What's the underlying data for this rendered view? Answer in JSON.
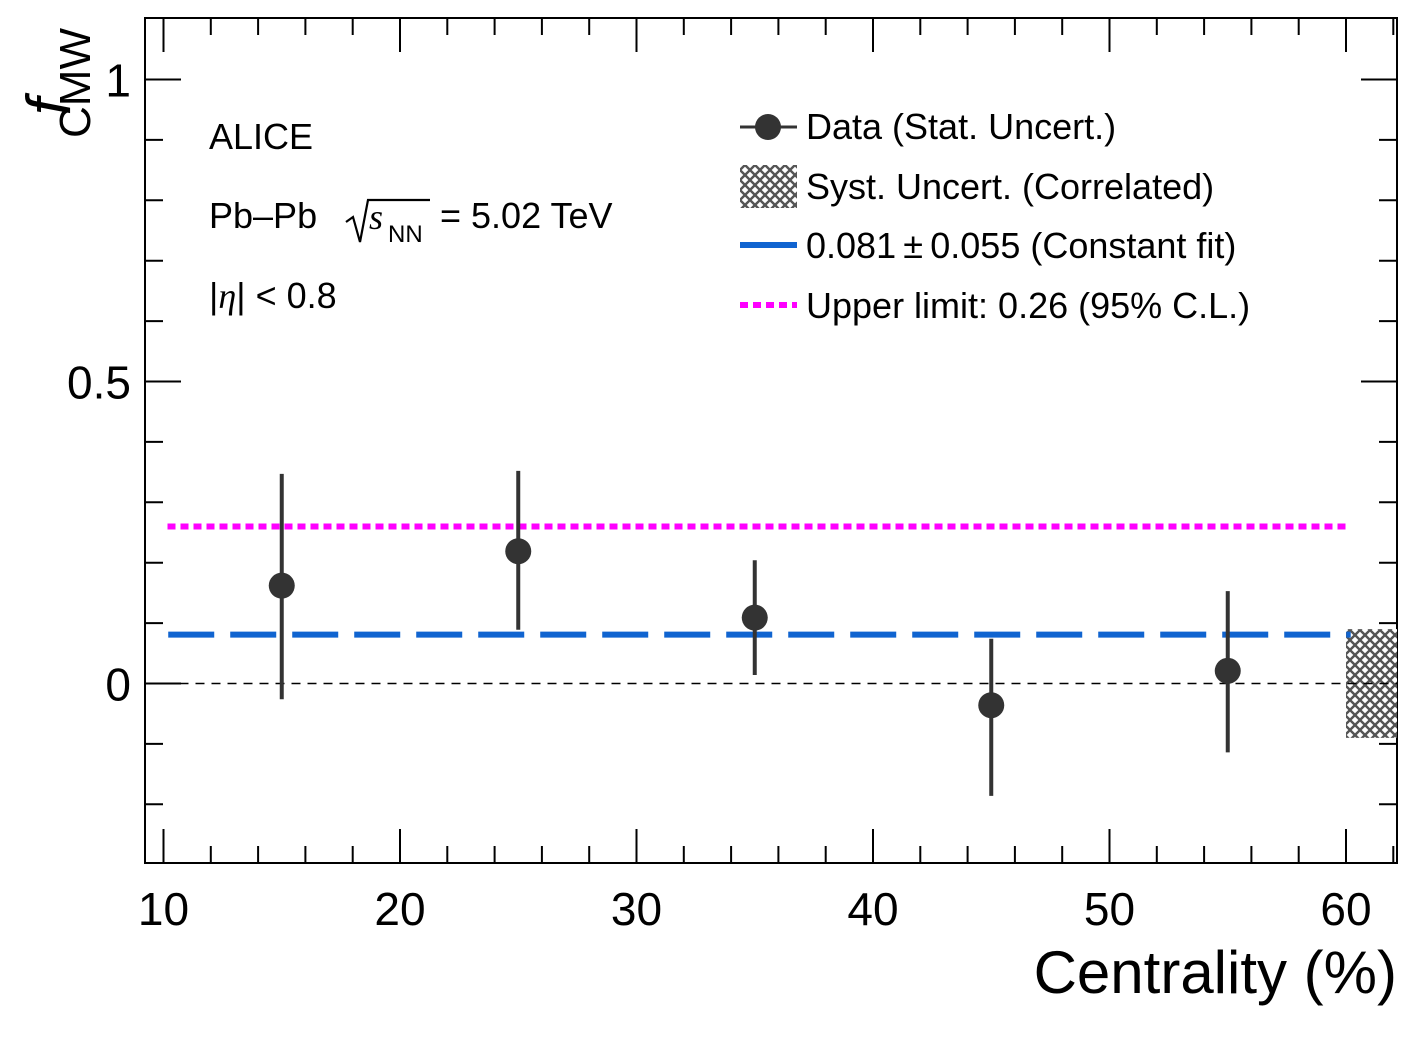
{
  "chart_data": {
    "type": "scatter",
    "xlabel": "Centrality (%)",
    "ylabel_main": "f",
    "ylabel_sub": "CMW",
    "xlim": [
      9,
      62
    ],
    "ylim": [
      -0.3,
      1.1
    ],
    "x_ticks": [
      10,
      20,
      30,
      40,
      50,
      60
    ],
    "x_tick_labels": [
      "10",
      "20",
      "30",
      "40",
      "50",
      "60"
    ],
    "y_ticks": [
      0,
      0.5,
      1
    ],
    "y_tick_labels": [
      "0",
      "0.5",
      "1"
    ],
    "series": [
      {
        "name": "Data (Stat. Uncert.)",
        "color": "#333333",
        "x": [
          15,
          25,
          35,
          45,
          55
        ],
        "y": [
          0.162,
          0.219,
          0.109,
          -0.036,
          0.021
        ],
        "err_low": [
          0.188,
          0.13,
          0.095,
          0.15,
          0.135
        ],
        "err_high": [
          0.185,
          0.133,
          0.095,
          0.11,
          0.132
        ]
      }
    ],
    "constant_fit": {
      "value": 0.081,
      "x_range": [
        10.2,
        60.2
      ],
      "color": "#1064d0"
    },
    "upper_limit": {
      "value": 0.26,
      "x_range": [
        10,
        60
      ],
      "color": "#ff00ff"
    },
    "zero_line": 0,
    "syst_band": {
      "x_range": [
        60,
        62
      ],
      "y_range": [
        -0.09,
        0.09
      ]
    },
    "annotations": {
      "experiment": "ALICE",
      "system": "Pb–Pb",
      "energy_sub": "NN",
      "energy_value": "= 5.02 TeV",
      "eta_cut": "< 0.8"
    },
    "legend": [
      {
        "key": "data",
        "label": "Data (Stat. Uncert.)"
      },
      {
        "key": "syst",
        "label": "Syst. Uncert. (Correlated)"
      },
      {
        "key": "fit",
        "label": "0.081 ± 0.055 (Constant fit)"
      },
      {
        "key": "limit",
        "label": "Upper limit: 0.26 (95% C.L.)"
      }
    ]
  }
}
